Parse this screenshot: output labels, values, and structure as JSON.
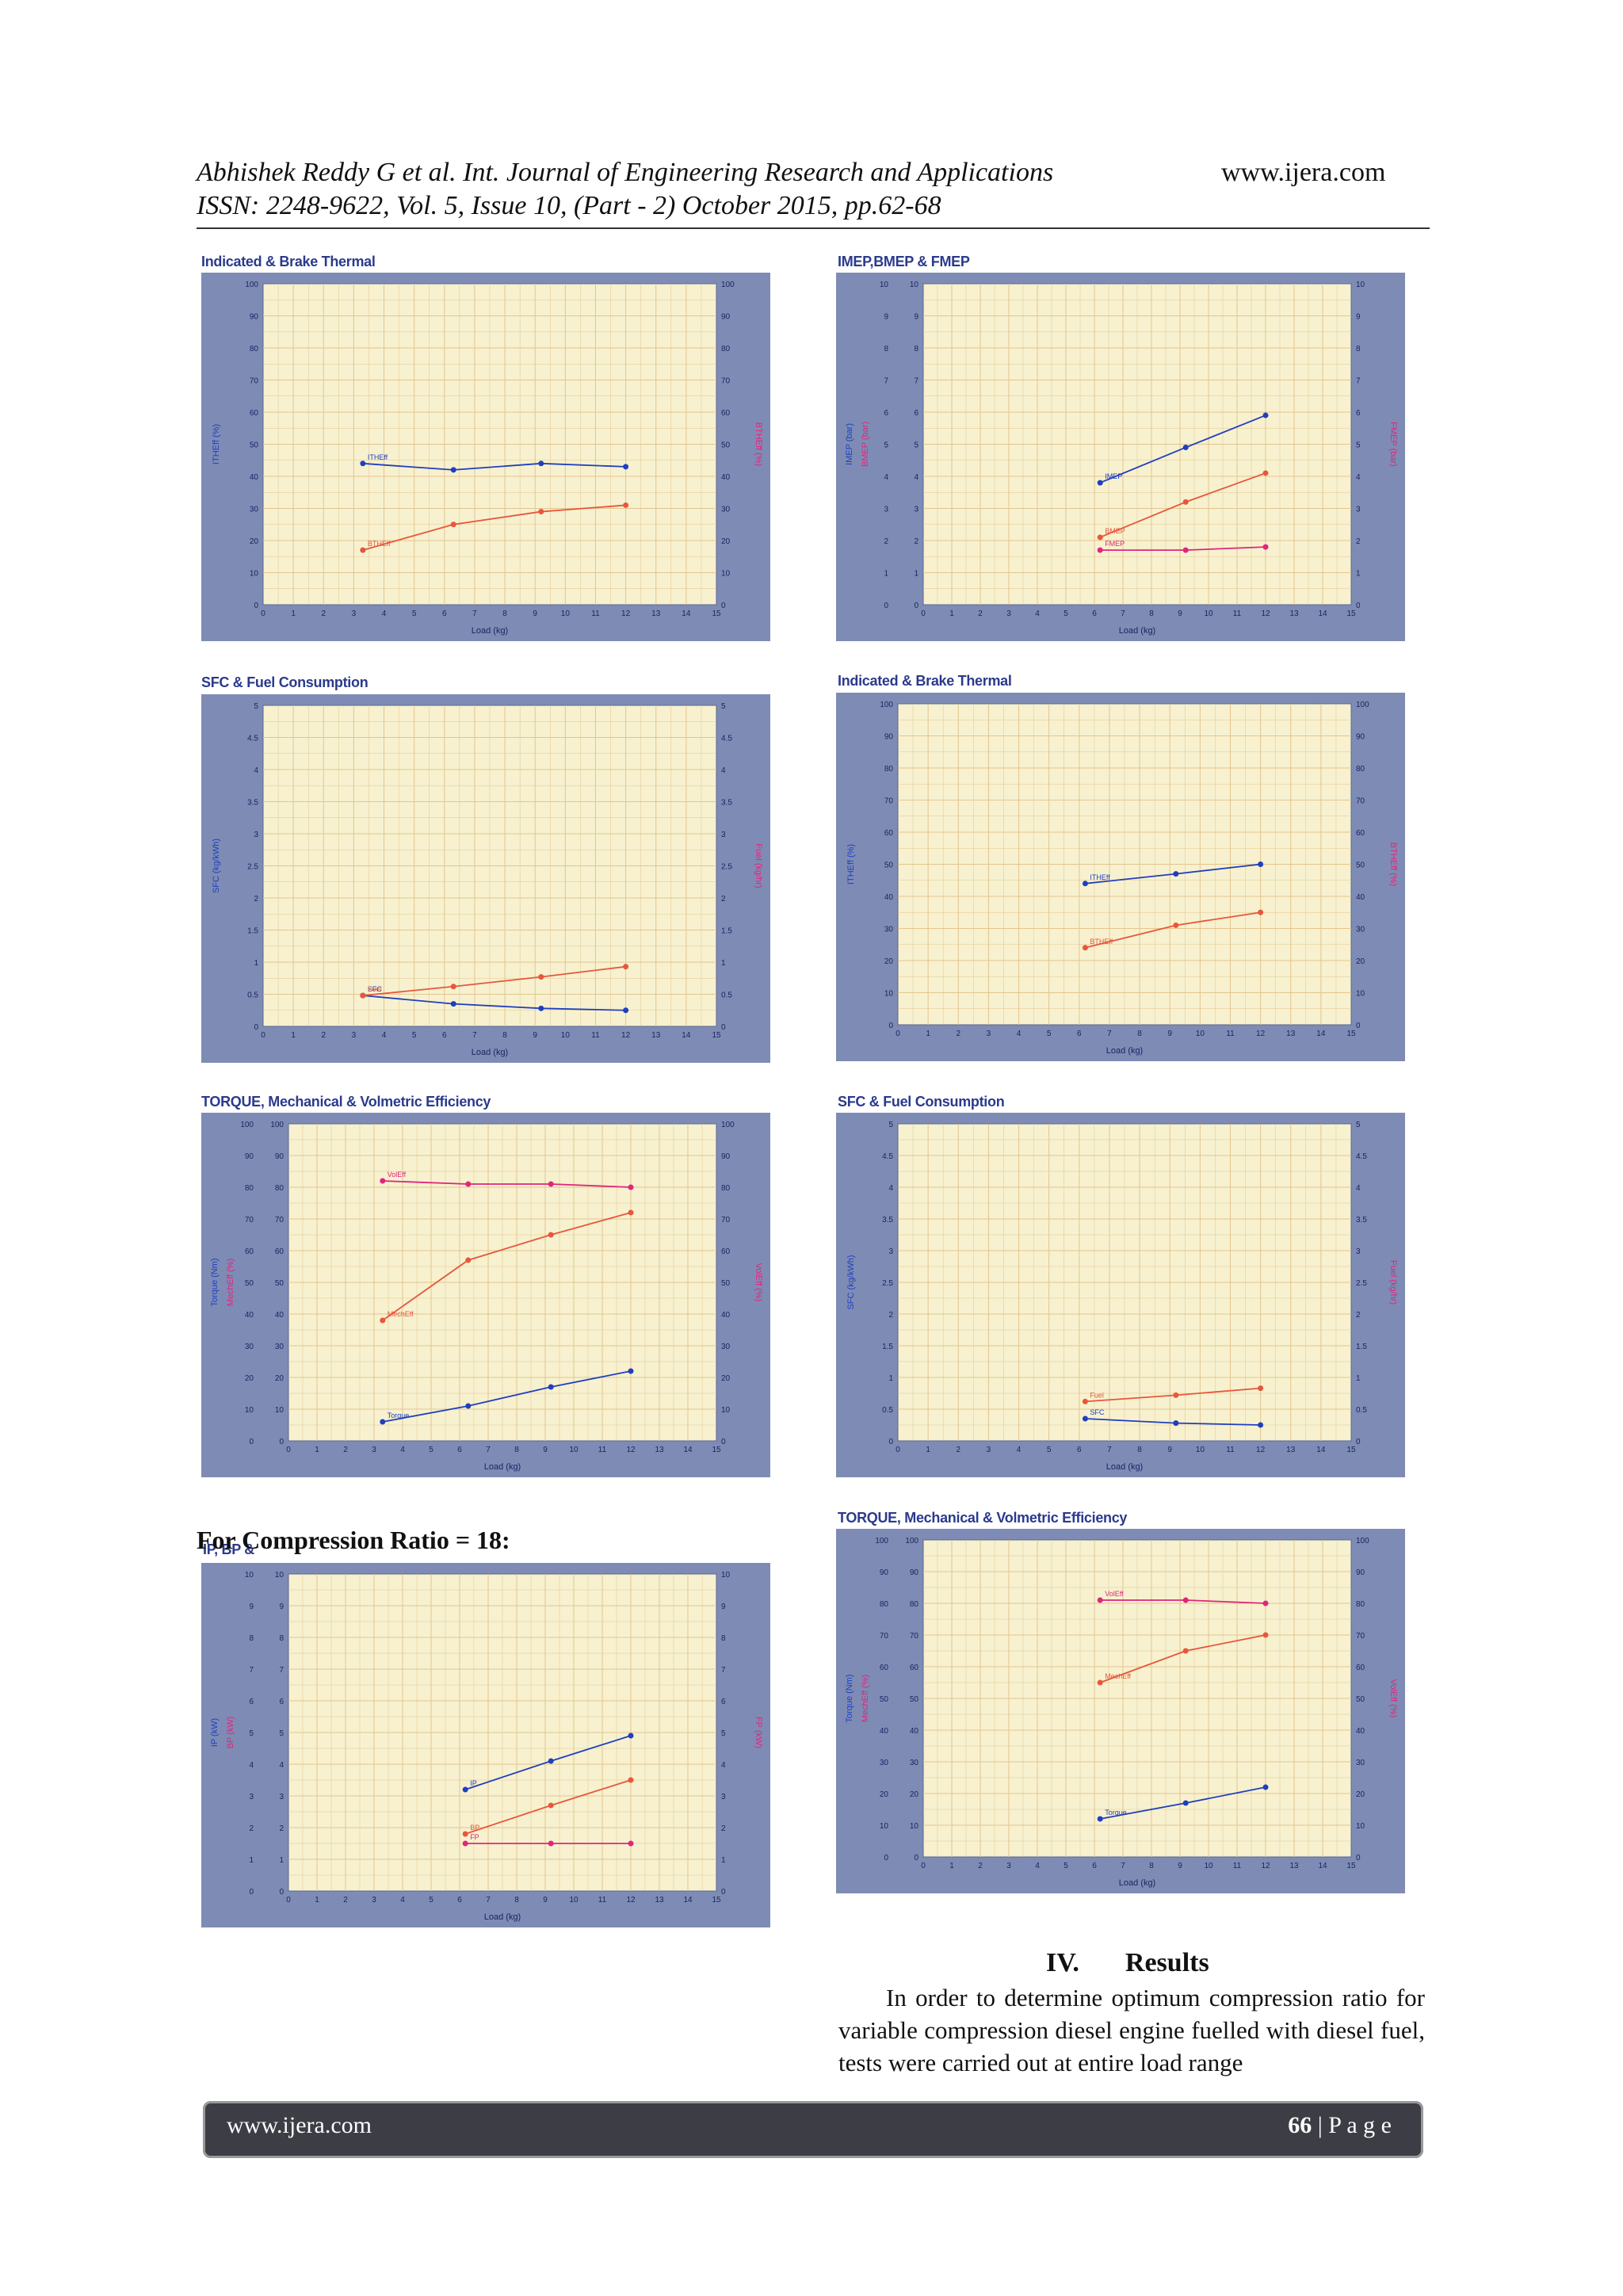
{
  "header": {
    "citation_line1": "Abhishek Reddy G et al. Int. Journal of Engineering Research and Applications",
    "site": "www.ijera.com",
    "citation_line2": "ISSN: 2248-9622, Vol. 5, Issue 10, (Part - 2) October 2015, pp.62-68"
  },
  "compression_label": "For Compression Ratio = 18:",
  "section": {
    "number": "IV.",
    "title": "Results"
  },
  "paragraph": "In order to determine optimum compression ratio for variable compression diesel engine fuelled with diesel fuel, tests were carried out at entire load range",
  "footer": {
    "site": "www.ijera.com",
    "page_number": "66",
    "page_word": "| P a g e"
  },
  "colors": {
    "plot_bg": "#f7f1cf",
    "frame": "#7e8cb5",
    "grid": "#e3c58f",
    "blue": "#1f3fbf",
    "red": "#e8563b",
    "magenta": "#e0257c"
  },
  "chart_data": [
    {
      "id": "c1",
      "type": "line",
      "title": "Indicated & Brake Thermal",
      "xlabel": "Load (kg)",
      "ylabel": "ITHEff (%)",
      "ylabel_right": "BTHEff (%)",
      "xlim": [
        0,
        15
      ],
      "ylim": [
        0,
        100
      ],
      "ylim_right": [
        0,
        100
      ],
      "xticks": [
        "0",
        "1",
        "2",
        "3",
        "4",
        "5",
        "6",
        "7",
        "8",
        "9",
        "10",
        "11",
        "12",
        "13",
        "14",
        "15"
      ],
      "yticks": [
        "0",
        "10",
        "20",
        "30",
        "40",
        "50",
        "60",
        "70",
        "80",
        "90",
        "100"
      ],
      "yticks_right": [
        "0",
        "10",
        "20",
        "30",
        "40",
        "50",
        "60",
        "70",
        "80",
        "90",
        "100"
      ],
      "series": [
        {
          "name": "ITHEff",
          "color": "#1f3fbf",
          "x": [
            3.3,
            6.3,
            9.2,
            12.0
          ],
          "y": [
            44,
            42,
            44,
            43
          ]
        },
        {
          "name": "BTHEff",
          "color": "#e8563b",
          "x": [
            3.3,
            6.3,
            9.2,
            12.0
          ],
          "y": [
            17,
            25,
            29,
            31
          ]
        }
      ]
    },
    {
      "id": "c2",
      "type": "line",
      "title": "IMEP,BMEP & FMEP",
      "xlabel": "Load (kg)",
      "ylabel": "IMEP (bar)",
      "ylabel2": "BMEP (bar)",
      "ylabel_right": "FMEP (bar)",
      "xlim": [
        0,
        15
      ],
      "ylim": [
        0,
        10
      ],
      "ylim_right": [
        0,
        10
      ],
      "xticks": [
        "0",
        "1",
        "2",
        "3",
        "4",
        "5",
        "6",
        "7",
        "8",
        "9",
        "10",
        "11",
        "12",
        "13",
        "14",
        "15"
      ],
      "yticks": [
        "0",
        "1",
        "2",
        "3",
        "4",
        "5",
        "6",
        "7",
        "8",
        "9",
        "10"
      ],
      "yticks_right": [
        "0",
        "1",
        "2",
        "3",
        "4",
        "5",
        "6",
        "7",
        "8",
        "9",
        "10"
      ],
      "series": [
        {
          "name": "IMEP",
          "color": "#1f3fbf",
          "x": [
            6.2,
            9.2,
            12.0
          ],
          "y": [
            3.8,
            4.9,
            5.9
          ]
        },
        {
          "name": "BMEP",
          "color": "#e8563b",
          "x": [
            6.2,
            9.2,
            12.0
          ],
          "y": [
            2.1,
            3.2,
            4.1
          ]
        },
        {
          "name": "FMEP",
          "color": "#e0257c",
          "x": [
            6.2,
            9.2,
            12.0
          ],
          "y": [
            1.7,
            1.7,
            1.8
          ]
        }
      ]
    },
    {
      "id": "c3",
      "type": "line",
      "title": "SFC & Fuel Consumption",
      "xlabel": "Load (kg)",
      "ylabel": "SFC (kg/kWh)",
      "ylabel_right": "Fuel (kg/hr)",
      "xlim": [
        0,
        15
      ],
      "ylim": [
        0,
        5
      ],
      "ylim_right": [
        0,
        5
      ],
      "xticks": [
        "0",
        "1",
        "2",
        "3",
        "4",
        "5",
        "6",
        "7",
        "8",
        "9",
        "10",
        "11",
        "12",
        "13",
        "14",
        "15"
      ],
      "yticks": [
        "0",
        "0.5",
        "1",
        "1.5",
        "2",
        "2.5",
        "3",
        "3.5",
        "4",
        "4.5",
        "5"
      ],
      "yticks_right": [
        "0",
        "0.5",
        "1",
        "1.5",
        "2",
        "2.5",
        "3",
        "3.5",
        "4",
        "4.5",
        "5"
      ],
      "series": [
        {
          "name": "SFC",
          "color": "#1f3fbf",
          "x": [
            3.3,
            6.3,
            9.2,
            12.0
          ],
          "y": [
            0.48,
            0.35,
            0.28,
            0.25
          ]
        },
        {
          "name": "Fuel",
          "color": "#e8563b",
          "x": [
            3.3,
            6.3,
            9.2,
            12.0
          ],
          "y": [
            0.48,
            0.62,
            0.77,
            0.93
          ]
        }
      ]
    },
    {
      "id": "c4",
      "type": "line",
      "title": "Indicated & Brake Thermal",
      "xlabel": "Load (kg)",
      "ylabel": "ITHEff (%)",
      "ylabel_right": "BTHEff (%)",
      "xlim": [
        0,
        15
      ],
      "ylim": [
        0,
        100
      ],
      "ylim_right": [
        0,
        100
      ],
      "xticks": [
        "0",
        "1",
        "2",
        "3",
        "4",
        "5",
        "6",
        "7",
        "8",
        "9",
        "10",
        "11",
        "12",
        "13",
        "14",
        "15"
      ],
      "yticks": [
        "0",
        "10",
        "20",
        "30",
        "40",
        "50",
        "60",
        "70",
        "80",
        "90",
        "100"
      ],
      "yticks_right": [
        "0",
        "10",
        "20",
        "30",
        "40",
        "50",
        "60",
        "70",
        "80",
        "90",
        "100"
      ],
      "series": [
        {
          "name": "ITHEff",
          "color": "#1f3fbf",
          "x": [
            6.2,
            9.2,
            12.0
          ],
          "y": [
            44,
            47,
            50
          ]
        },
        {
          "name": "BTHEff",
          "color": "#e8563b",
          "x": [
            6.2,
            9.2,
            12.0
          ],
          "y": [
            24,
            31,
            35
          ]
        }
      ]
    },
    {
      "id": "c5",
      "type": "line",
      "title": "TORQUE, Mechanical & Volmetric Efficiency",
      "xlabel": "Load (kg)",
      "ylabel": "Torque (Nm)",
      "ylabel2": "MechEff (%)",
      "ylabel_right": "VolEff (%)",
      "xlim": [
        0,
        15
      ],
      "ylim": [
        0,
        100
      ],
      "ylim_right": [
        0,
        100
      ],
      "xticks": [
        "0",
        "1",
        "2",
        "3",
        "4",
        "5",
        "6",
        "7",
        "8",
        "9",
        "10",
        "11",
        "12",
        "13",
        "14",
        "15"
      ],
      "yticks": [
        "0",
        "10",
        "20",
        "30",
        "40",
        "50",
        "60",
        "70",
        "80",
        "90",
        "100"
      ],
      "yticks_right": [
        "0",
        "10",
        "20",
        "30",
        "40",
        "50",
        "60",
        "70",
        "80",
        "90",
        "100"
      ],
      "series": [
        {
          "name": "VolEff",
          "color": "#e0257c",
          "x": [
            3.3,
            6.3,
            9.2,
            12.0
          ],
          "y": [
            82,
            81,
            81,
            80
          ]
        },
        {
          "name": "MechEff",
          "color": "#e8563b",
          "x": [
            3.3,
            6.3,
            9.2,
            12.0
          ],
          "y": [
            38,
            57,
            65,
            72
          ]
        },
        {
          "name": "Torque",
          "color": "#1f3fbf",
          "x": [
            3.3,
            6.3,
            9.2,
            12.0
          ],
          "y": [
            6,
            11,
            17,
            22
          ]
        }
      ]
    },
    {
      "id": "c6",
      "type": "line",
      "title": "SFC & Fuel Consumption",
      "xlabel": "Load (kg)",
      "ylabel": "SFC (kg/kWh)",
      "ylabel_right": "Fuel (kg/hr)",
      "xlim": [
        0,
        15
      ],
      "ylim": [
        0,
        5
      ],
      "ylim_right": [
        0,
        5
      ],
      "xticks": [
        "0",
        "1",
        "2",
        "3",
        "4",
        "5",
        "6",
        "7",
        "8",
        "9",
        "10",
        "11",
        "12",
        "13",
        "14",
        "15"
      ],
      "yticks": [
        "0",
        "0.5",
        "1",
        "1.5",
        "2",
        "2.5",
        "3",
        "3.5",
        "4",
        "4.5",
        "5"
      ],
      "yticks_right": [
        "0",
        "0.5",
        "1",
        "1.5",
        "2",
        "2.5",
        "3",
        "3.5",
        "4",
        "4.5",
        "5"
      ],
      "series": [
        {
          "name": "Fuel",
          "color": "#e8563b",
          "x": [
            6.2,
            9.2,
            12.0
          ],
          "y": [
            0.62,
            0.72,
            0.83
          ]
        },
        {
          "name": "SFC",
          "color": "#1f3fbf",
          "x": [
            6.2,
            9.2,
            12.0
          ],
          "y": [
            0.35,
            0.28,
            0.25
          ]
        }
      ]
    },
    {
      "id": "c7",
      "type": "line",
      "title": "IP, BP &",
      "xlabel": "Load (kg)",
      "ylabel": "IP (kW)",
      "ylabel2": "BP (kW)",
      "ylabel_right": "FP (kW)",
      "xlim": [
        0,
        15
      ],
      "ylim": [
        0,
        10
      ],
      "ylim_right": [
        0,
        10
      ],
      "xticks": [
        "0",
        "1",
        "2",
        "3",
        "4",
        "5",
        "6",
        "7",
        "8",
        "9",
        "10",
        "11",
        "12",
        "13",
        "14",
        "15"
      ],
      "yticks": [
        "0",
        "1",
        "2",
        "3",
        "4",
        "5",
        "6",
        "7",
        "8",
        "9",
        "10"
      ],
      "yticks_right": [
        "0",
        "1",
        "2",
        "3",
        "4",
        "5",
        "6",
        "7",
        "8",
        "9",
        "10"
      ],
      "series": [
        {
          "name": "IP",
          "color": "#1f3fbf",
          "x": [
            6.2,
            9.2,
            12.0
          ],
          "y": [
            3.2,
            4.1,
            4.9
          ]
        },
        {
          "name": "BP",
          "color": "#e8563b",
          "x": [
            6.2,
            9.2,
            12.0
          ],
          "y": [
            1.8,
            2.7,
            3.5
          ]
        },
        {
          "name": "FP",
          "color": "#e0257c",
          "x": [
            6.2,
            9.2,
            12.0
          ],
          "y": [
            1.5,
            1.5,
            1.5
          ]
        }
      ]
    },
    {
      "id": "c8",
      "type": "line",
      "title": "TORQUE, Mechanical & Volmetric Efficiency",
      "xlabel": "Load (kg)",
      "ylabel": "Torque (Nm)",
      "ylabel2": "MechEff (%)",
      "ylabel_right": "VolEff (%)",
      "xlim": [
        0,
        15
      ],
      "ylim": [
        0,
        100
      ],
      "ylim_right": [
        0,
        100
      ],
      "xticks": [
        "0",
        "1",
        "2",
        "3",
        "4",
        "5",
        "6",
        "7",
        "8",
        "9",
        "10",
        "11",
        "12",
        "13",
        "14",
        "15"
      ],
      "yticks": [
        "0",
        "10",
        "20",
        "30",
        "40",
        "50",
        "60",
        "70",
        "80",
        "90",
        "100"
      ],
      "yticks_right": [
        "0",
        "10",
        "20",
        "30",
        "40",
        "50",
        "60",
        "70",
        "80",
        "90",
        "100"
      ],
      "series": [
        {
          "name": "VolEff",
          "color": "#e0257c",
          "x": [
            6.2,
            9.2,
            12.0
          ],
          "y": [
            81,
            81,
            80
          ]
        },
        {
          "name": "MechEff",
          "color": "#e8563b",
          "x": [
            6.2,
            9.2,
            12.0
          ],
          "y": [
            55,
            65,
            70
          ]
        },
        {
          "name": "Torque",
          "color": "#1f3fbf",
          "x": [
            6.2,
            9.2,
            12.0
          ],
          "y": [
            12,
            17,
            22
          ]
        }
      ]
    }
  ]
}
